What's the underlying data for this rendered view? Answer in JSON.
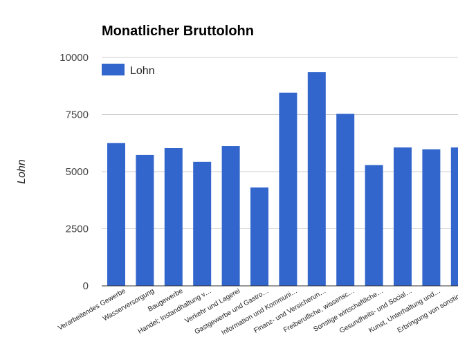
{
  "chart_data": {
    "type": "bar",
    "title": "Monatlicher Bruttolohn",
    "xlabel": "",
    "ylabel": "Lohn",
    "ylim": [
      0,
      10000
    ],
    "yticks": [
      "0",
      "2500",
      "5000",
      "7500",
      "10000"
    ],
    "ytick_values": [
      0,
      2500,
      5000,
      7500,
      10000
    ],
    "grid": true,
    "legend_position": "top-left",
    "categories": [
      "Verarbeitendes Gewerbe",
      "Wasserversorgung",
      "Baugewerbe",
      "Handel; Instandhaltung v…",
      "Verkehr und Lagerei",
      "Gastgewerbe und Gastro…",
      "Information und Kommuni…",
      "Finanz- und Versicherun…",
      "Freiberufliche, wissensc…",
      "Sonstige wirtschaftliche…",
      "Gesundheits- und Social…",
      "Kunst, Unterhaltung und…",
      "Erbringung von sonstige…"
    ],
    "series": [
      {
        "name": "Lohn",
        "color": "#3366cc",
        "values": [
          6250,
          5730,
          6030,
          5430,
          6120,
          4310,
          8460,
          9360,
          7530,
          5290,
          6060,
          5980,
          6060
        ]
      }
    ]
  }
}
